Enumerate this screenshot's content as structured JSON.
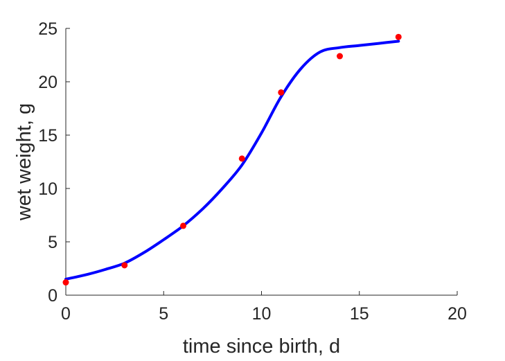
{
  "chart_data": {
    "type": "scatter",
    "title": "",
    "xlabel": "time since birth, d",
    "ylabel": "wet weight, g",
    "xlim": [
      0,
      20
    ],
    "ylim": [
      0,
      25
    ],
    "xticks": [
      0,
      5,
      10,
      15,
      20
    ],
    "yticks": [
      0,
      5,
      10,
      15,
      20,
      25
    ],
    "grid": false,
    "series": [
      {
        "kind": "scatter",
        "color": "#ff0000",
        "x": [
          0,
          3,
          6,
          9,
          11,
          14,
          17
        ],
        "y": [
          1.2,
          2.8,
          6.5,
          12.8,
          19.0,
          22.4,
          24.2
        ]
      },
      {
        "kind": "line",
        "color": "#0000ff",
        "x": [
          0,
          1,
          2,
          3,
          4,
          5,
          6,
          7,
          8,
          9,
          10,
          11,
          12,
          13,
          14,
          15,
          16,
          17
        ],
        "y": [
          1.5,
          1.9,
          2.4,
          3.0,
          4.0,
          5.2,
          6.5,
          8.1,
          10.0,
          12.2,
          15.2,
          18.6,
          21.2,
          22.8,
          23.2,
          23.4,
          23.6,
          23.8
        ]
      }
    ]
  }
}
